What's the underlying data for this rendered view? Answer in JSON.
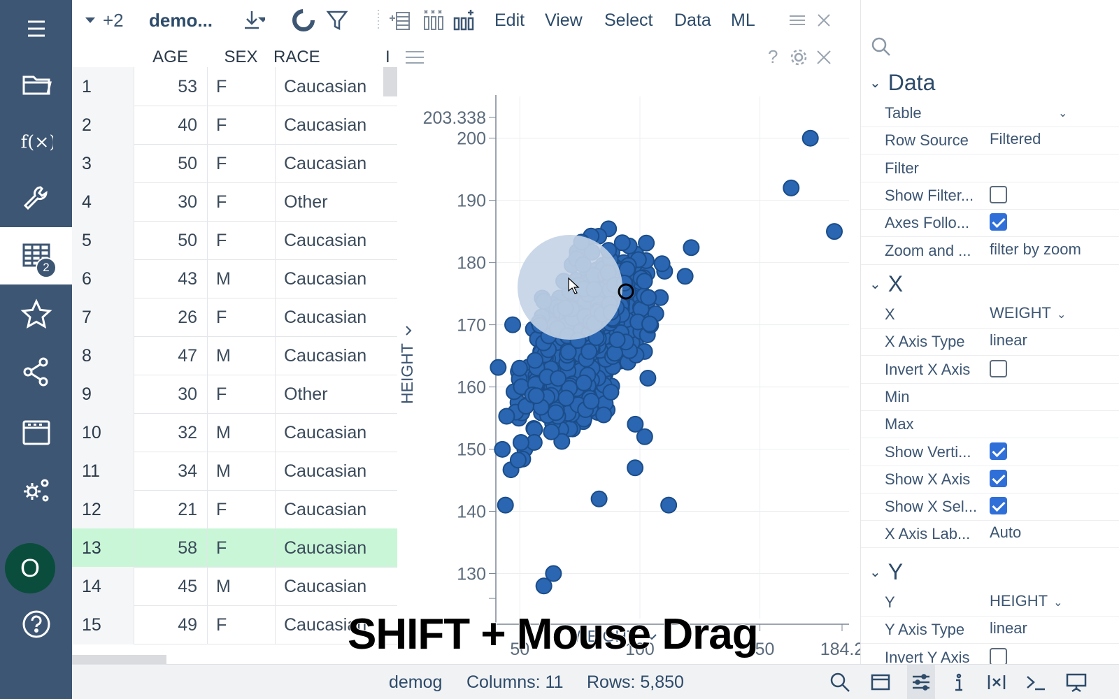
{
  "toolbar": {
    "views_extra": "+2",
    "table_name": "demo...",
    "menu": [
      "Edit",
      "View",
      "Select",
      "Data",
      "ML"
    ]
  },
  "grid": {
    "columns": [
      "AGE",
      "SEX",
      "RACE",
      "I"
    ],
    "rows": [
      {
        "idx": "1",
        "age": "53",
        "sex": "F",
        "race": "Caucasian"
      },
      {
        "idx": "2",
        "age": "40",
        "sex": "F",
        "race": "Caucasian"
      },
      {
        "idx": "3",
        "age": "50",
        "sex": "F",
        "race": "Caucasian"
      },
      {
        "idx": "4",
        "age": "30",
        "sex": "F",
        "race": "Other"
      },
      {
        "idx": "5",
        "age": "50",
        "sex": "F",
        "race": "Caucasian"
      },
      {
        "idx": "6",
        "age": "43",
        "sex": "M",
        "race": "Caucasian"
      },
      {
        "idx": "7",
        "age": "26",
        "sex": "F",
        "race": "Caucasian"
      },
      {
        "idx": "8",
        "age": "47",
        "sex": "M",
        "race": "Caucasian"
      },
      {
        "idx": "9",
        "age": "30",
        "sex": "F",
        "race": "Other"
      },
      {
        "idx": "10",
        "age": "32",
        "sex": "M",
        "race": "Caucasian"
      },
      {
        "idx": "11",
        "age": "34",
        "sex": "M",
        "race": "Caucasian"
      },
      {
        "idx": "12",
        "age": "21",
        "sex": "F",
        "race": "Caucasian"
      },
      {
        "idx": "13",
        "age": "58",
        "sex": "F",
        "race": "Caucasian"
      },
      {
        "idx": "14",
        "age": "45",
        "sex": "M",
        "race": "Caucasian"
      },
      {
        "idx": "15",
        "age": "49",
        "sex": "F",
        "race": "Caucasian"
      }
    ],
    "current_row": 13
  },
  "plot": {
    "overlay": "SHIFT + Mouse Drag",
    "color": "#2a66b1"
  },
  "chart_data": {
    "type": "scatter",
    "xlabel": "WEIGHT",
    "ylabel": "HEIGHT",
    "xlim": [
      40,
      184.2
    ],
    "ylim": [
      125,
      203.338
    ],
    "x_ticks": [
      "50",
      "100",
      "150",
      "184.2"
    ],
    "y_ticks": [
      "203.338",
      "200",
      "190",
      "180",
      "170",
      "160",
      "150",
      "140",
      "130"
    ],
    "outliers": {
      "x": [
        171,
        181,
        163,
        60,
        112,
        47,
        44,
        64,
        83,
        88,
        102,
        98
      ],
      "y": [
        200,
        185,
        192,
        128,
        141,
        170,
        141,
        130,
        142,
        172,
        152,
        147
      ]
    }
  },
  "props": {
    "sections": {
      "data": "Data",
      "x": "X",
      "y": "Y"
    },
    "data_rows": [
      {
        "label": "Table",
        "value": "",
        "type": "dropdown"
      },
      {
        "label": "Row Source",
        "value": "Filtered",
        "type": "text"
      },
      {
        "label": "Filter",
        "value": "",
        "type": "text"
      },
      {
        "label": "Show Filter...",
        "value": "",
        "type": "checkbox",
        "checked": false
      },
      {
        "label": "Axes Follo...",
        "value": "",
        "type": "checkbox",
        "checked": true
      },
      {
        "label": "Zoom and ...",
        "value": "filter by zoom",
        "type": "text"
      }
    ],
    "x_rows": [
      {
        "label": "X",
        "value": "WEIGHT",
        "type": "dropdown"
      },
      {
        "label": "X Axis Type",
        "value": "linear",
        "type": "text"
      },
      {
        "label": "Invert X Axis",
        "value": "",
        "type": "checkbox",
        "checked": false
      },
      {
        "label": "Min",
        "value": "",
        "type": "text"
      },
      {
        "label": "Max",
        "value": "",
        "type": "text"
      },
      {
        "label": "Show Verti...",
        "value": "",
        "type": "checkbox",
        "checked": true
      },
      {
        "label": "Show X Axis",
        "value": "",
        "type": "checkbox",
        "checked": true
      },
      {
        "label": "Show X Sel...",
        "value": "",
        "type": "checkbox",
        "checked": true
      },
      {
        "label": "X Axis Lab...",
        "value": "Auto",
        "type": "text"
      }
    ],
    "y_rows": [
      {
        "label": "Y",
        "value": "HEIGHT",
        "type": "dropdown"
      },
      {
        "label": "Y Axis Type",
        "value": "linear",
        "type": "text"
      },
      {
        "label": "Invert Y Axis",
        "value": "",
        "type": "checkbox",
        "checked": false
      }
    ]
  },
  "status": {
    "table": "demog",
    "columns": "Columns: 11",
    "rows": "Rows: 5,850"
  }
}
